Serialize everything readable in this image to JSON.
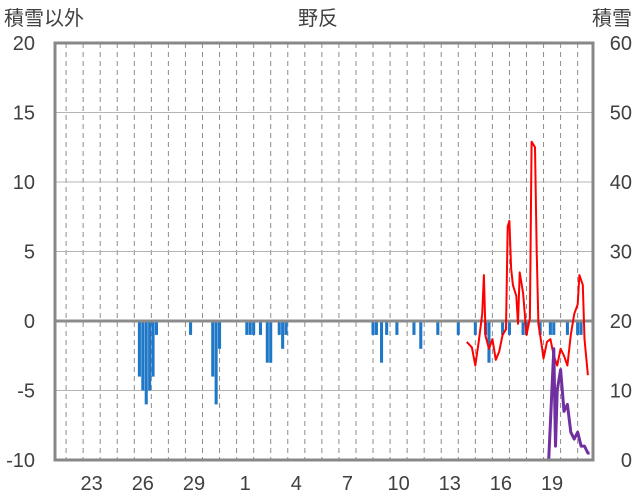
{
  "chart_data": {
    "type": "bar",
    "title": "野反",
    "left_axis_title": "積雪以外",
    "right_axis_title": "積雪",
    "left_ylim": [
      -10,
      20
    ],
    "right_ylim": [
      0,
      60
    ],
    "left_ticks": [
      "20",
      "15",
      "10",
      "5",
      "0",
      "-5",
      "-10"
    ],
    "right_ticks": [
      "60",
      "50",
      "40",
      "30",
      "20",
      "10",
      "0"
    ],
    "x_tick_labels": [
      "23",
      "26",
      "29",
      "1",
      "4",
      "7",
      "10",
      "13",
      "16",
      "19"
    ],
    "grid": "dashed vertical lines, solid horizontal lines",
    "series": [
      {
        "name": "",
        "kind": "bar",
        "axis": "left",
        "color": "#1f77c8",
        "points": [
          [
            24.3,
            -4.0
          ],
          [
            24.5,
            -5.0
          ],
          [
            24.7,
            -6.0
          ],
          [
            24.9,
            -5.0
          ],
          [
            25.1,
            -4.0
          ],
          [
            25.3,
            -1.0
          ],
          [
            27.3,
            -1.0
          ],
          [
            28.6,
            -4.0
          ],
          [
            28.8,
            -6.0
          ],
          [
            29.0,
            -2.0
          ],
          [
            30.6,
            -1.0
          ],
          [
            30.8,
            -1.0
          ],
          [
            31.0,
            -1.0
          ],
          [
            31.4,
            -1.0
          ],
          [
            31.8,
            -3.0
          ],
          [
            32.0,
            -3.0
          ],
          [
            32.5,
            -1.0
          ],
          [
            32.7,
            -2.0
          ],
          [
            32.9,
            -1.0
          ],
          [
            38.0,
            -1.0
          ],
          [
            38.2,
            -1.0
          ],
          [
            38.5,
            -3.0
          ],
          [
            38.8,
            -1.0
          ],
          [
            39.4,
            -1.0
          ],
          [
            40.4,
            -1.0
          ],
          [
            40.8,
            -2.0
          ],
          [
            41.8,
            -1.0
          ],
          [
            43.0,
            -1.0
          ],
          [
            44.0,
            -1.0
          ],
          [
            44.6,
            -1.0
          ],
          [
            44.8,
            -3.0
          ],
          [
            45.6,
            -1.0
          ],
          [
            46.0,
            -1.0
          ],
          [
            46.8,
            -1.0
          ],
          [
            47.0,
            -1.0
          ],
          [
            47.8,
            -1.0
          ],
          [
            48.4,
            -1.0
          ],
          [
            48.6,
            -1.0
          ],
          [
            49.4,
            -1.0
          ],
          [
            50.0,
            -1.0
          ],
          [
            50.2,
            -1.0
          ]
        ]
      },
      {
        "name": "",
        "kind": "line",
        "axis": "left",
        "color": "#ff0000",
        "points": [
          [
            43.5,
            -1.5
          ],
          [
            43.8,
            -1.9
          ],
          [
            44.0,
            -3.2
          ],
          [
            44.2,
            -1.5
          ],
          [
            44.4,
            0.5
          ],
          [
            44.5,
            3.3
          ],
          [
            44.6,
            -1.1
          ],
          [
            44.8,
            -2.0
          ],
          [
            45.0,
            -1.3
          ],
          [
            45.2,
            -2.8
          ],
          [
            45.4,
            -2.2
          ],
          [
            45.6,
            -1.0
          ],
          [
            45.8,
            -0.6
          ],
          [
            45.9,
            6.8
          ],
          [
            46.0,
            7.2
          ],
          [
            46.1,
            3.8
          ],
          [
            46.2,
            2.6
          ],
          [
            46.4,
            1.8
          ],
          [
            46.5,
            -0.2
          ],
          [
            46.6,
            3.5
          ],
          [
            46.8,
            2.0
          ],
          [
            47.0,
            -1.0
          ],
          [
            47.2,
            0.2
          ],
          [
            47.3,
            12.9
          ],
          [
            47.5,
            12.5
          ],
          [
            47.6,
            5.0
          ],
          [
            47.7,
            -0.2
          ],
          [
            47.9,
            -1.8
          ],
          [
            48.0,
            -2.7
          ],
          [
            48.2,
            -1.5
          ],
          [
            48.4,
            -1.3
          ],
          [
            48.6,
            -2.5
          ],
          [
            48.8,
            -3.2
          ],
          [
            49.0,
            -2.0
          ],
          [
            49.2,
            -2.5
          ],
          [
            49.4,
            -3.2
          ],
          [
            49.6,
            -1.0
          ],
          [
            49.8,
            0.5
          ],
          [
            50.0,
            1.2
          ],
          [
            50.1,
            3.3
          ],
          [
            50.3,
            2.6
          ],
          [
            50.4,
            -1.3
          ],
          [
            50.6,
            -3.9
          ]
        ]
      },
      {
        "name": "",
        "kind": "line",
        "axis": "right",
        "color": "#7030a0",
        "points": [
          [
            43.5,
            0
          ],
          [
            48.3,
            0
          ],
          [
            48.6,
            16
          ],
          [
            48.7,
            2
          ],
          [
            48.8,
            10
          ],
          [
            49.0,
            13
          ],
          [
            49.2,
            7
          ],
          [
            49.4,
            8
          ],
          [
            49.6,
            4
          ],
          [
            49.8,
            3
          ],
          [
            50.0,
            4
          ],
          [
            50.2,
            2
          ],
          [
            50.4,
            2
          ],
          [
            50.6,
            1
          ],
          [
            50.7,
            1
          ]
        ]
      }
    ]
  }
}
